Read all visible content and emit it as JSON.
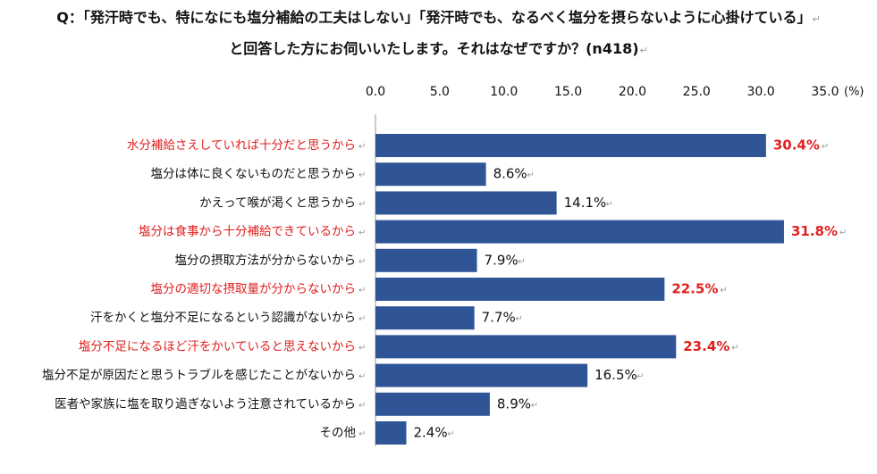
{
  "question": {
    "line1": "Q：「発汗時でも、特になにも塩分補給の工夫はしない」「発汗時でも、なるべく塩分を摂らないように心掛けている」",
    "line2": "と回答した方にお伺いいたします。それはなぜですか？(n418)"
  },
  "return_mark": "↵",
  "colors": {
    "bar": "#2F5597",
    "highlight": "#E02020",
    "text": "#111111",
    "axis": "#9a9a9a",
    "mark": "#9a9a9a"
  },
  "chart_data": {
    "type": "bar",
    "orientation": "horizontal",
    "unit_label": "(%)",
    "xlim": [
      0,
      35
    ],
    "ticks": [
      0.0,
      5.0,
      10.0,
      15.0,
      20.0,
      25.0,
      30.0,
      35.0
    ],
    "tick_labels": [
      "0.0",
      "5.0",
      "10.0",
      "15.0",
      "20.0",
      "25.0",
      "30.0",
      "35.0"
    ],
    "categories": [
      "水分補給さえしていれば十分だと思うから",
      "塩分は体に良くないものだと思うから",
      "かえって喉が渇くと思うから",
      "塩分は食事から十分補給できているから",
      "塩分の摂取方法が分からないから",
      "塩分の適切な摂取量が分からないから",
      "汗をかくと塩分不足になるという認識がないから",
      "塩分不足になるほど汗をかいていると思えないから",
      "塩分不足が原因だと思うトラブルを感じたことがないから",
      "医者や家族に塩を取り過ぎないよう注意されているから",
      "その他"
    ],
    "values": [
      30.4,
      8.6,
      14.1,
      31.8,
      7.9,
      22.5,
      7.7,
      23.4,
      16.5,
      8.9,
      2.4
    ],
    "value_labels": [
      "30.4%",
      "8.6%",
      "14.1%",
      "31.8%",
      "7.9%",
      "22.5%",
      "7.7%",
      "23.4%",
      "16.5%",
      "8.9%",
      "2.4%"
    ],
    "highlighted": [
      true,
      false,
      false,
      true,
      false,
      true,
      false,
      true,
      false,
      false,
      false
    ]
  }
}
